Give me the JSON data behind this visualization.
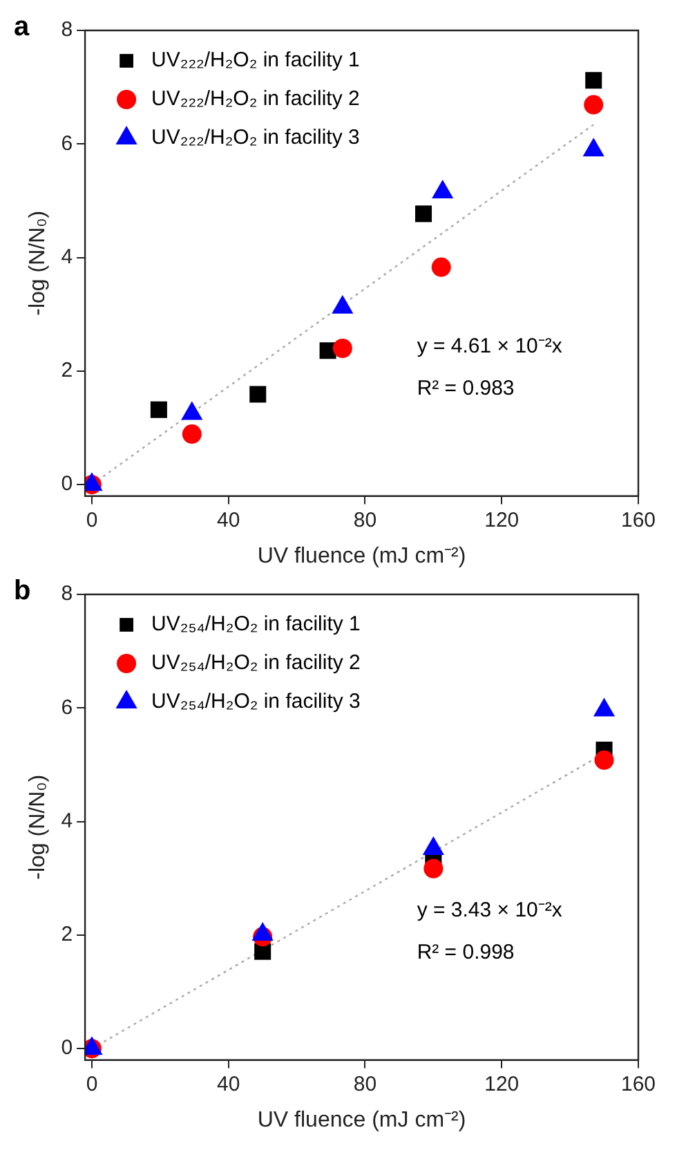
{
  "chart_data": [
    {
      "type": "scatter",
      "annotations": [
        "a",
        "y = 4.61 × 10⁻²x",
        "R² = 0.983"
      ],
      "xlabel": "UV fluence (mJ cm⁻²)",
      "ylabel": "-log (N/N₀)",
      "xlim": [
        -2,
        160
      ],
      "ylim": [
        -0.2,
        8
      ],
      "xticks": [
        0,
        40,
        80,
        120,
        160
      ],
      "yticks": [
        0,
        2,
        4,
        6,
        8
      ],
      "grid": false,
      "legend": "top left",
      "series": [
        {
          "name": "UV₂₂₂/H₂O₂ in facility 1",
          "color": "#000000",
          "marker": "square",
          "x": [
            19.6,
            48.6,
            69.1,
            97.1,
            146.9
          ],
          "values": [
            1.32,
            1.59,
            2.36,
            4.77,
            7.12
          ]
        },
        {
          "name": "UV₂₂₂/H₂O₂ in facility 2",
          "color": "#ff0000",
          "marker": "circle",
          "x": [
            0,
            29.3,
            73.4,
            102.3,
            146.9
          ],
          "values": [
            0,
            0.89,
            2.4,
            3.83,
            6.69
          ]
        },
        {
          "name": "UV₂₂₂/H₂O₂ in facility 3",
          "color": "#0000ff",
          "marker": "triangle",
          "x": [
            0,
            29.3,
            73.4,
            102.7,
            146.9
          ],
          "values": [
            0,
            1.25,
            3.12,
            5.15,
            5.89
          ]
        },
        {
          "type": "line",
          "color": "#aaaaaa",
          "marker": "none",
          "line_style": "dotted",
          "x": [
            0,
            146.9
          ],
          "values": [
            0,
            6.34
          ]
        }
      ]
    },
    {
      "type": "scatter",
      "annotations": [
        "b",
        "y = 3.43 × 10⁻²x",
        "R² = 0.998"
      ],
      "xlabel": "UV fluence (mJ cm⁻²)",
      "ylabel": "-log (N/N₀)",
      "xlim": [
        -2,
        160
      ],
      "ylim": [
        -0.2,
        8
      ],
      "xticks": [
        0,
        40,
        80,
        120,
        160
      ],
      "yticks": [
        0,
        2,
        4,
        6,
        8
      ],
      "grid": false,
      "legend": "top left",
      "series": [
        {
          "name": "UV₂₅₄/H₂O₂ in facility 1",
          "color": "#000000",
          "marker": "square",
          "x": [
            50,
            100,
            150
          ],
          "values": [
            1.71,
            3.33,
            5.26
          ]
        },
        {
          "name": "UV₂₅₄/H₂O₂ in facility 2",
          "color": "#ff0000",
          "marker": "circle",
          "x": [
            0,
            50,
            100,
            150
          ],
          "values": [
            0,
            1.97,
            3.17,
            5.08
          ]
        },
        {
          "name": "UV₂₅₄/H₂O₂ in facility 3",
          "color": "#0000ff",
          "marker": "triangle",
          "x": [
            0,
            50,
            100,
            150
          ],
          "values": [
            0,
            2.01,
            3.52,
            5.96
          ]
        },
        {
          "type": "line",
          "color": "#aaaaaa",
          "marker": "none",
          "line_style": "dotted",
          "x": [
            0,
            150
          ],
          "values": [
            0,
            5.2
          ]
        }
      ]
    }
  ]
}
